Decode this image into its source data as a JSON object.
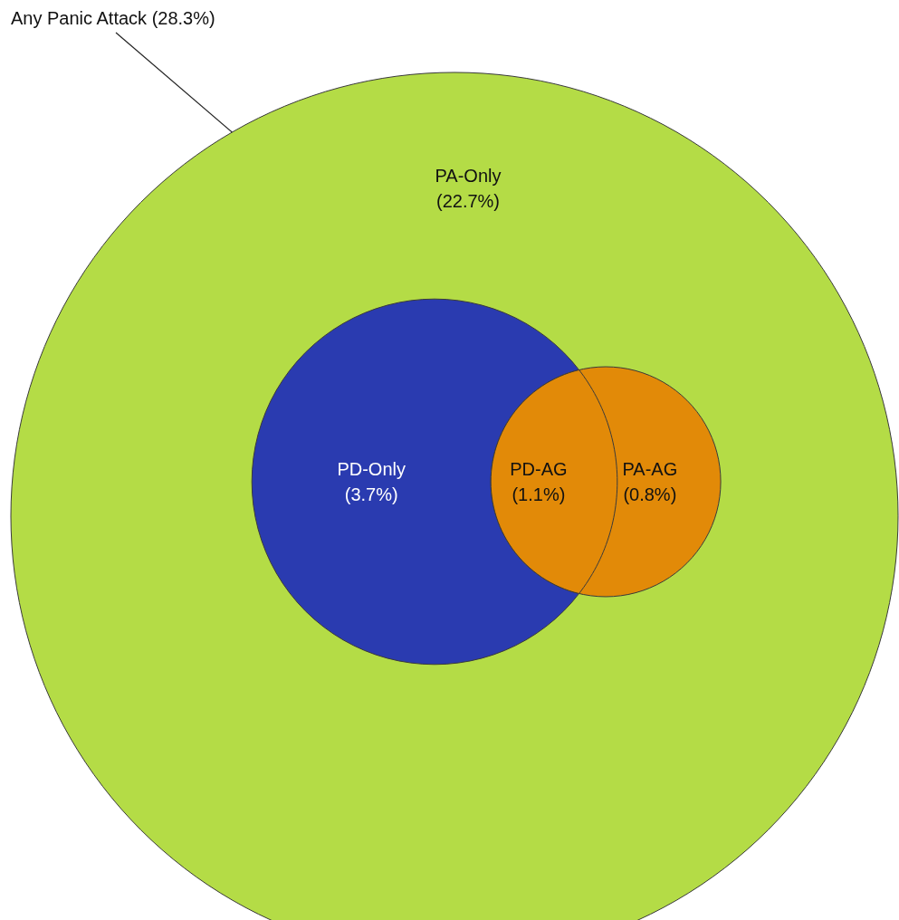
{
  "chart_data": {
    "type": "other",
    "categories": [
      "PA-Only",
      "PD-Only",
      "PD-AG",
      "PA-AG"
    ],
    "values": [
      22.7,
      3.7,
      1.1,
      0.8
    ],
    "value_labels": [
      "(22.7%)",
      "(3.7%)",
      "(1.1%)",
      "(0.8%)"
    ],
    "colors": [
      "#b4dc46",
      "#2a3bb0",
      "#e28a08",
      "#e28a08"
    ],
    "annotations": [
      "Any Panic Attack (28.3%)"
    ]
  }
}
